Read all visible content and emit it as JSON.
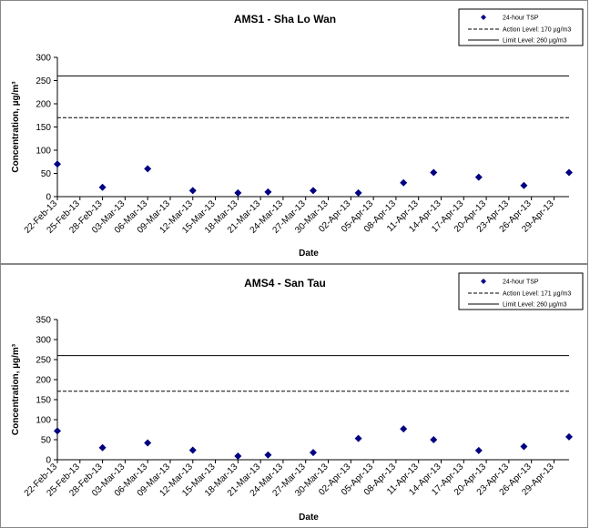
{
  "colors": {
    "marker": "#000080",
    "line": "#000000",
    "frame": "#888888"
  },
  "chart_data": [
    {
      "type": "scatter",
      "title": "AMS1 - Sha Lo Wan",
      "xlabel": "Date",
      "ylabel": "Concentration, µg/m³",
      "ylim": [
        0,
        300
      ],
      "yticks": [
        "0",
        "50",
        "100",
        "150",
        "200",
        "250",
        "300"
      ],
      "xticks": [
        "22-Feb-13",
        "25-Feb-13",
        "28-Feb-13",
        "03-Mar-13",
        "06-Mar-13",
        "09-Mar-13",
        "12-Mar-13",
        "15-Mar-13",
        "18-Mar-13",
        "21-Mar-13",
        "24-Mar-13",
        "27-Mar-13",
        "30-Mar-13",
        "02-Apr-13",
        "05-Apr-13",
        "08-Apr-13",
        "11-Apr-13",
        "14-Apr-13",
        "17-Apr-13",
        "20-Apr-13",
        "23-Apr-13",
        "26-Apr-13",
        "29-Apr-13"
      ],
      "series": [
        {
          "name": "24-hour TSP",
          "x": [
            "2013-02-22",
            "2013-02-28",
            "2013-03-06",
            "2013-03-12",
            "2013-03-18",
            "2013-03-22",
            "2013-03-28",
            "2013-04-03",
            "2013-04-09",
            "2013-04-13",
            "2013-04-19",
            "2013-04-25",
            "2013-05-01"
          ],
          "y": [
            70,
            20,
            60,
            13,
            8,
            10,
            13,
            8,
            30,
            52,
            42,
            24,
            52
          ]
        }
      ],
      "reference_lines": [
        {
          "name": "Action Level: 170 µg/m3",
          "value": 170,
          "style": "dashed"
        },
        {
          "name": "Limit Level: 260 µg/m3",
          "value": 260,
          "style": "solid"
        }
      ],
      "legend": "top-right"
    },
    {
      "type": "scatter",
      "title": "AMS4 - San Tau",
      "xlabel": "Date",
      "ylabel": "Concentration, µg/m³",
      "ylim": [
        0,
        350
      ],
      "yticks": [
        "0",
        "50",
        "100",
        "150",
        "200",
        "250",
        "300",
        "350"
      ],
      "xticks": [
        "22-Feb-13",
        "25-Feb-13",
        "28-Feb-13",
        "03-Mar-13",
        "06-Mar-13",
        "09-Mar-13",
        "12-Mar-13",
        "15-Mar-13",
        "18-Mar-13",
        "21-Mar-13",
        "24-Mar-13",
        "27-Mar-13",
        "30-Mar-13",
        "02-Apr-13",
        "05-Apr-13",
        "08-Apr-13",
        "11-Apr-13",
        "14-Apr-13",
        "17-Apr-13",
        "20-Apr-13",
        "23-Apr-13",
        "26-Apr-13",
        "29-Apr-13"
      ],
      "series": [
        {
          "name": "24-hour TSP",
          "x": [
            "2013-02-22",
            "2013-02-28",
            "2013-03-06",
            "2013-03-12",
            "2013-03-18",
            "2013-03-22",
            "2013-03-28",
            "2013-04-03",
            "2013-04-09",
            "2013-04-13",
            "2013-04-19",
            "2013-04-25",
            "2013-05-01"
          ],
          "y": [
            72,
            30,
            42,
            24,
            9,
            12,
            18,
            53,
            77,
            50,
            23,
            33,
            57
          ]
        }
      ],
      "reference_lines": [
        {
          "name": "Action Level: 171 µg/m3",
          "value": 171,
          "style": "dashed"
        },
        {
          "name": "Limit Level: 260 µg/m3",
          "value": 260,
          "style": "solid"
        }
      ],
      "legend": "top-right"
    }
  ]
}
